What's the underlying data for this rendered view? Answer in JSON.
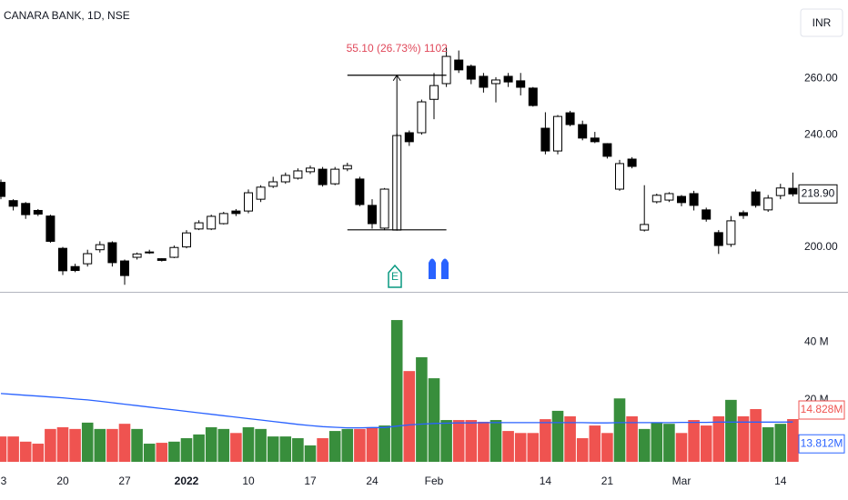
{
  "chart_data": [
    {
      "type": "candlestick",
      "title": "CANARA BANK, 1D, NSE",
      "currency": "INR",
      "categories": [
        "3",
        null,
        null,
        null,
        null,
        "20",
        null,
        null,
        null,
        null,
        "27",
        null,
        null,
        null,
        null,
        "2022",
        null,
        null,
        null,
        null,
        "10",
        null,
        null,
        null,
        null,
        "17",
        null,
        null,
        null,
        null,
        "24",
        null,
        null,
        null,
        null,
        "Feb",
        null,
        null,
        null,
        null,
        null,
        null,
        null,
        null,
        "14",
        null,
        null,
        null,
        null,
        "21",
        null,
        null,
        null,
        null,
        null,
        "Mar",
        null,
        null,
        null,
        null,
        null,
        null,
        null,
        "14",
        null
      ],
      "open": [
        223,
        216.5,
        215.5,
        213,
        211,
        199.5,
        193,
        194,
        199,
        201.5,
        195,
        196.3,
        198,
        195.8,
        196.3,
        200,
        206.4,
        206.4,
        208.3,
        212.8,
        212.8,
        217,
        221.6,
        223.2,
        224.5,
        226.8,
        227.7,
        222.5,
        227.8,
        224.2,
        214.8,
        206.7,
        206,
        240.7,
        240.7,
        252.6,
        258.2,
        266.6,
        264.4,
        260.8,
        258.2,
        260.8,
        259.2,
        256.6,
        242.3,
        234.2,
        247.8,
        243.6,
        238.8,
        236.8,
        220.6,
        231.3,
        206,
        216.1,
        216.7,
        218,
        219,
        213.2,
        205.1,
        200.9,
        212.2,
        219.6,
        213.2,
        218.3,
        220.9
      ],
      "high": [
        224,
        217,
        216,
        213.5,
        211.5,
        200,
        194,
        199,
        202,
        202,
        195.5,
        198,
        199,
        196,
        200.5,
        206,
        209.5,
        211.5,
        212.5,
        213.5,
        220.5,
        222,
        225,
        226.5,
        228,
        229,
        228.5,
        228.5,
        230,
        225,
        217,
        221,
        240.5,
        241.5,
        252.5,
        262,
        271,
        270,
        265,
        262,
        260.5,
        262,
        262,
        257,
        248,
        247,
        248.5,
        245,
        241,
        237,
        231,
        232,
        222,
        219,
        219.5,
        218.5,
        220,
        214,
        206,
        211,
        213,
        220.5,
        218.5,
        222.5,
        226.5
      ],
      "low": [
        217,
        213,
        210,
        211,
        201.5,
        190,
        191,
        193,
        198,
        193,
        186.5,
        195.5,
        197.5,
        194.8,
        196,
        199.5,
        206,
        206,
        208,
        211,
        212,
        216,
        221,
        222.5,
        224,
        226,
        221.5,
        222,
        227,
        214.5,
        206.5,
        206,
        205.8,
        236,
        240,
        245.5,
        257,
        262,
        258,
        255,
        251.5,
        257,
        254,
        250,
        233,
        233,
        243,
        238,
        237,
        231.5,
        220,
        228,
        205.5,
        215.5,
        216,
        214.5,
        213,
        209,
        197.5,
        200,
        210,
        214,
        212.5,
        217,
        218
      ],
      "close": [
        218,
        214.5,
        211.5,
        211.7,
        202,
        191.5,
        191.6,
        197.6,
        200.8,
        194.4,
        189.8,
        197.5,
        198.2,
        195.2,
        199.8,
        205,
        208.6,
        210.9,
        211.9,
        211.9,
        219.3,
        221.3,
        223.2,
        225.5,
        227.1,
        228.1,
        222.2,
        227.7,
        229,
        215.1,
        208.3,
        220.6,
        239.7,
        237.5,
        251.7,
        257.5,
        267.9,
        263.1,
        259.8,
        256.9,
        259.5,
        258.8,
        256.9,
        250.4,
        234.2,
        246.5,
        243.6,
        238.8,
        237.5,
        232.3,
        229.7,
        228.7,
        208,
        218.4,
        219,
        215.8,
        214.8,
        209.9,
        200.5,
        209.3,
        211.2,
        214.8,
        217.4,
        221,
        218.9
      ],
      "color_up": "#ffffff",
      "color_down": "#000000",
      "ylim": [
        184,
        288
      ],
      "yticks": [
        {
          "value": 200,
          "label": "200.00"
        },
        {
          "value": 240,
          "label": "240.00"
        },
        {
          "value": 260,
          "label": "260.00"
        }
      ],
      "last_price": {
        "value": 218.9,
        "label": "218.90"
      },
      "measure": {
        "label": "55.10 (26.73%) 1102",
        "from": 206.1,
        "to": 261.2
      },
      "earnings_marker": "E"
    },
    {
      "type": "bar",
      "values": [
        8.8,
        8.8,
        7,
        6.3,
        11.4,
        12,
        11.4,
        13.6,
        11.4,
        11.4,
        13.2,
        11.4,
        6.3,
        6.6,
        7,
        8.2,
        9.5,
        12,
        11.4,
        10,
        12,
        11.4,
        8.8,
        8.8,
        8.2,
        5.7,
        8.2,
        10.7,
        11.4,
        11.4,
        12,
        12.6,
        49.2,
        31.5,
        36.3,
        29,
        14.5,
        14.5,
        14.5,
        13.9,
        14.5,
        10.7,
        10,
        10,
        14.8,
        17.7,
        15.8,
        8.2,
        12.6,
        10,
        22,
        15.8,
        11.4,
        13.6,
        13.2,
        10,
        14.5,
        12.6,
        15.8,
        21.5,
        15.8,
        18.3,
        12,
        13.2,
        14.828
      ],
      "value_labels": [
        null,
        null,
        null,
        null,
        null,
        null,
        null,
        null,
        null,
        null,
        null,
        null,
        null,
        null,
        null,
        null,
        null,
        null,
        null,
        null,
        null,
        null,
        null,
        null,
        null,
        null,
        null,
        null,
        null,
        null,
        null,
        null,
        null,
        null,
        null,
        null,
        null,
        null,
        null,
        null,
        null,
        null,
        null,
        null,
        null,
        null,
        null,
        null,
        null,
        null,
        null,
        null,
        null,
        null,
        null,
        null,
        null,
        null,
        null,
        null,
        null,
        null,
        null,
        null,
        "14.828M"
      ],
      "up_color": "#388e3c",
      "down_color": "#ef5350",
      "ma": [
        23.7,
        23.4,
        23.1,
        22.8,
        22.5,
        22.2,
        21.8,
        21.5,
        21,
        20.5,
        20,
        19.5,
        19,
        18.5,
        18,
        17.5,
        17,
        16.5,
        16,
        15.5,
        15,
        14.5,
        14,
        13.5,
        13,
        12.6,
        12.2,
        12,
        11.8,
        11.8,
        11.9,
        11.9,
        12.4,
        12.8,
        13.1,
        13.3,
        13.4,
        13.5,
        13.5,
        13.6,
        13.6,
        13.6,
        13.6,
        13.6,
        13.6,
        13.6,
        13.6,
        13.6,
        13.5,
        13.5,
        13.6,
        13.6,
        13.6,
        13.6,
        13.6,
        13.7,
        13.7,
        13.7,
        13.8,
        13.8,
        13.8,
        13.8,
        13.8,
        13.8,
        13.812
      ],
      "ma_labels": [
        null,
        null,
        null,
        null,
        null,
        null,
        null,
        null,
        null,
        null,
        null,
        null,
        null,
        null,
        null,
        null,
        null,
        null,
        null,
        null,
        null,
        null,
        null,
        null,
        null,
        null,
        null,
        null,
        null,
        null,
        null,
        null,
        null,
        null,
        null,
        null,
        null,
        null,
        null,
        null,
        null,
        null,
        null,
        null,
        null,
        null,
        null,
        null,
        null,
        null,
        null,
        null,
        null,
        null,
        null,
        null,
        null,
        null,
        null,
        null,
        null,
        null,
        null,
        null,
        "13.812M"
      ],
      "ma_color": "#2962ff",
      "ylim": [
        0,
        59
      ],
      "yticks": [
        {
          "value": 20,
          "label": "20 M"
        },
        {
          "value": 40,
          "label": "40 M"
        }
      ]
    }
  ]
}
